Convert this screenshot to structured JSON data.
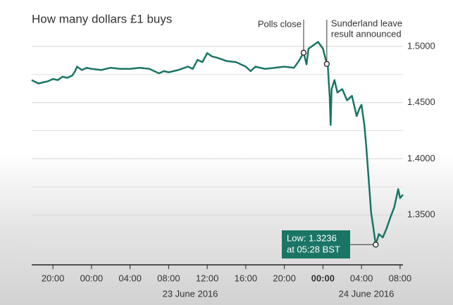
{
  "chart_data": {
    "type": "line",
    "title": "How many dollars £1 buys",
    "color": "#1a7565",
    "x": [
      -6.2,
      -5.5,
      -5,
      -4.5,
      -4,
      -3.5,
      -3,
      -2.5,
      -2,
      -1.7,
      -1.5,
      -1,
      -0.5,
      0,
      1,
      2,
      3,
      4,
      5,
      6,
      7,
      7.5,
      8,
      9,
      10,
      10.5,
      11,
      11.5,
      12,
      12.5,
      13,
      14,
      15,
      16,
      16.5,
      17,
      18,
      19,
      20,
      21,
      21.5,
      22,
      22.3,
      22.5,
      23,
      23.5,
      24,
      24.4,
      24.5,
      24.7,
      24.8,
      24.9,
      25.2,
      25.5,
      26,
      26.5,
      27,
      27.5,
      27.8,
      28,
      28.3,
      28.5,
      28.8,
      29,
      29.2,
      29.47,
      29.8,
      30.2,
      30.6,
      31,
      31.4,
      31.8,
      32,
      32.3
    ],
    "values": [
      1.47,
      1.467,
      1.468,
      1.469,
      1.471,
      1.47,
      1.473,
      1.472,
      1.474,
      1.478,
      1.482,
      1.479,
      1.481,
      1.48,
      1.479,
      1.481,
      1.48,
      1.48,
      1.481,
      1.48,
      1.476,
      1.478,
      1.477,
      1.479,
      1.482,
      1.48,
      1.488,
      1.486,
      1.494,
      1.491,
      1.49,
      1.487,
      1.486,
      1.482,
      1.478,
      1.482,
      1.48,
      1.481,
      1.482,
      1.481,
      1.487,
      1.4944,
      1.484,
      1.498,
      1.501,
      1.504,
      1.498,
      1.4844,
      1.484,
      1.455,
      1.43,
      1.462,
      1.47,
      1.459,
      1.462,
      1.452,
      1.456,
      1.438,
      1.445,
      1.448,
      1.43,
      1.41,
      1.375,
      1.352,
      1.34,
      1.3236,
      1.333,
      1.33,
      1.338,
      1.348,
      1.357,
      1.373,
      1.365,
      1.368
    ],
    "xlim": [
      -6.2,
      32.3
    ],
    "ylim": [
      1.3056,
      1.53
    ],
    "xticks": [
      {
        "value": -4,
        "label": "20:00"
      },
      {
        "value": 0,
        "label": "00:00"
      },
      {
        "value": 4,
        "label": "04:00"
      },
      {
        "value": 8,
        "label": "08:00"
      },
      {
        "value": 12,
        "label": "12:00"
      },
      {
        "value": 16,
        "label": "16:00"
      },
      {
        "value": 20,
        "label": "20:00"
      },
      {
        "value": 24,
        "label": "00:00",
        "bold": true
      },
      {
        "value": 28,
        "label": "04:00"
      },
      {
        "value": 32,
        "label": "08:00"
      }
    ],
    "yticks": [
      {
        "value": 1.5,
        "label": "1.5000"
      },
      {
        "value": 1.45,
        "label": "1.4500"
      },
      {
        "value": 1.4,
        "label": "1.4000"
      },
      {
        "value": 1.35,
        "label": "1.3500"
      }
    ],
    "minor_yticks": [
      1.475,
      1.425,
      1.375,
      1.325
    ],
    "grid": true,
    "date_labels": [
      "23 June 2016",
      "24 June 2016"
    ],
    "annotations": [
      {
        "text": [
          "Polls close"
        ],
        "x": 22,
        "y": 1.4944
      },
      {
        "text": [
          "Sunderland leave",
          "result announced"
        ],
        "x": 24.4,
        "y": 1.4844
      },
      {
        "text": [
          "Low: 1.3236",
          "at 05:28 BST"
        ],
        "x": 29.47,
        "y": 1.3236
      }
    ]
  }
}
